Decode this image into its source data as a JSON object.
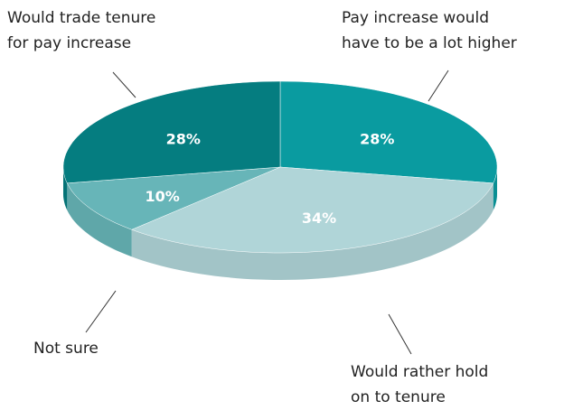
{
  "chart_data": {
    "type": "pie3d",
    "categories": [
      "Pay increase would\nhave to be a lot higher",
      "Would rather hold\non to tenure",
      "Not sure",
      "Would trade tenure\nfor pay increase"
    ],
    "values": [
      28,
      34,
      10,
      28
    ],
    "value_labels": [
      "28%",
      "34%",
      "10%",
      "28%"
    ],
    "colors": [
      "#0a9ba0",
      "#b0d5d8",
      "#67b5b8",
      "#057d80"
    ]
  }
}
